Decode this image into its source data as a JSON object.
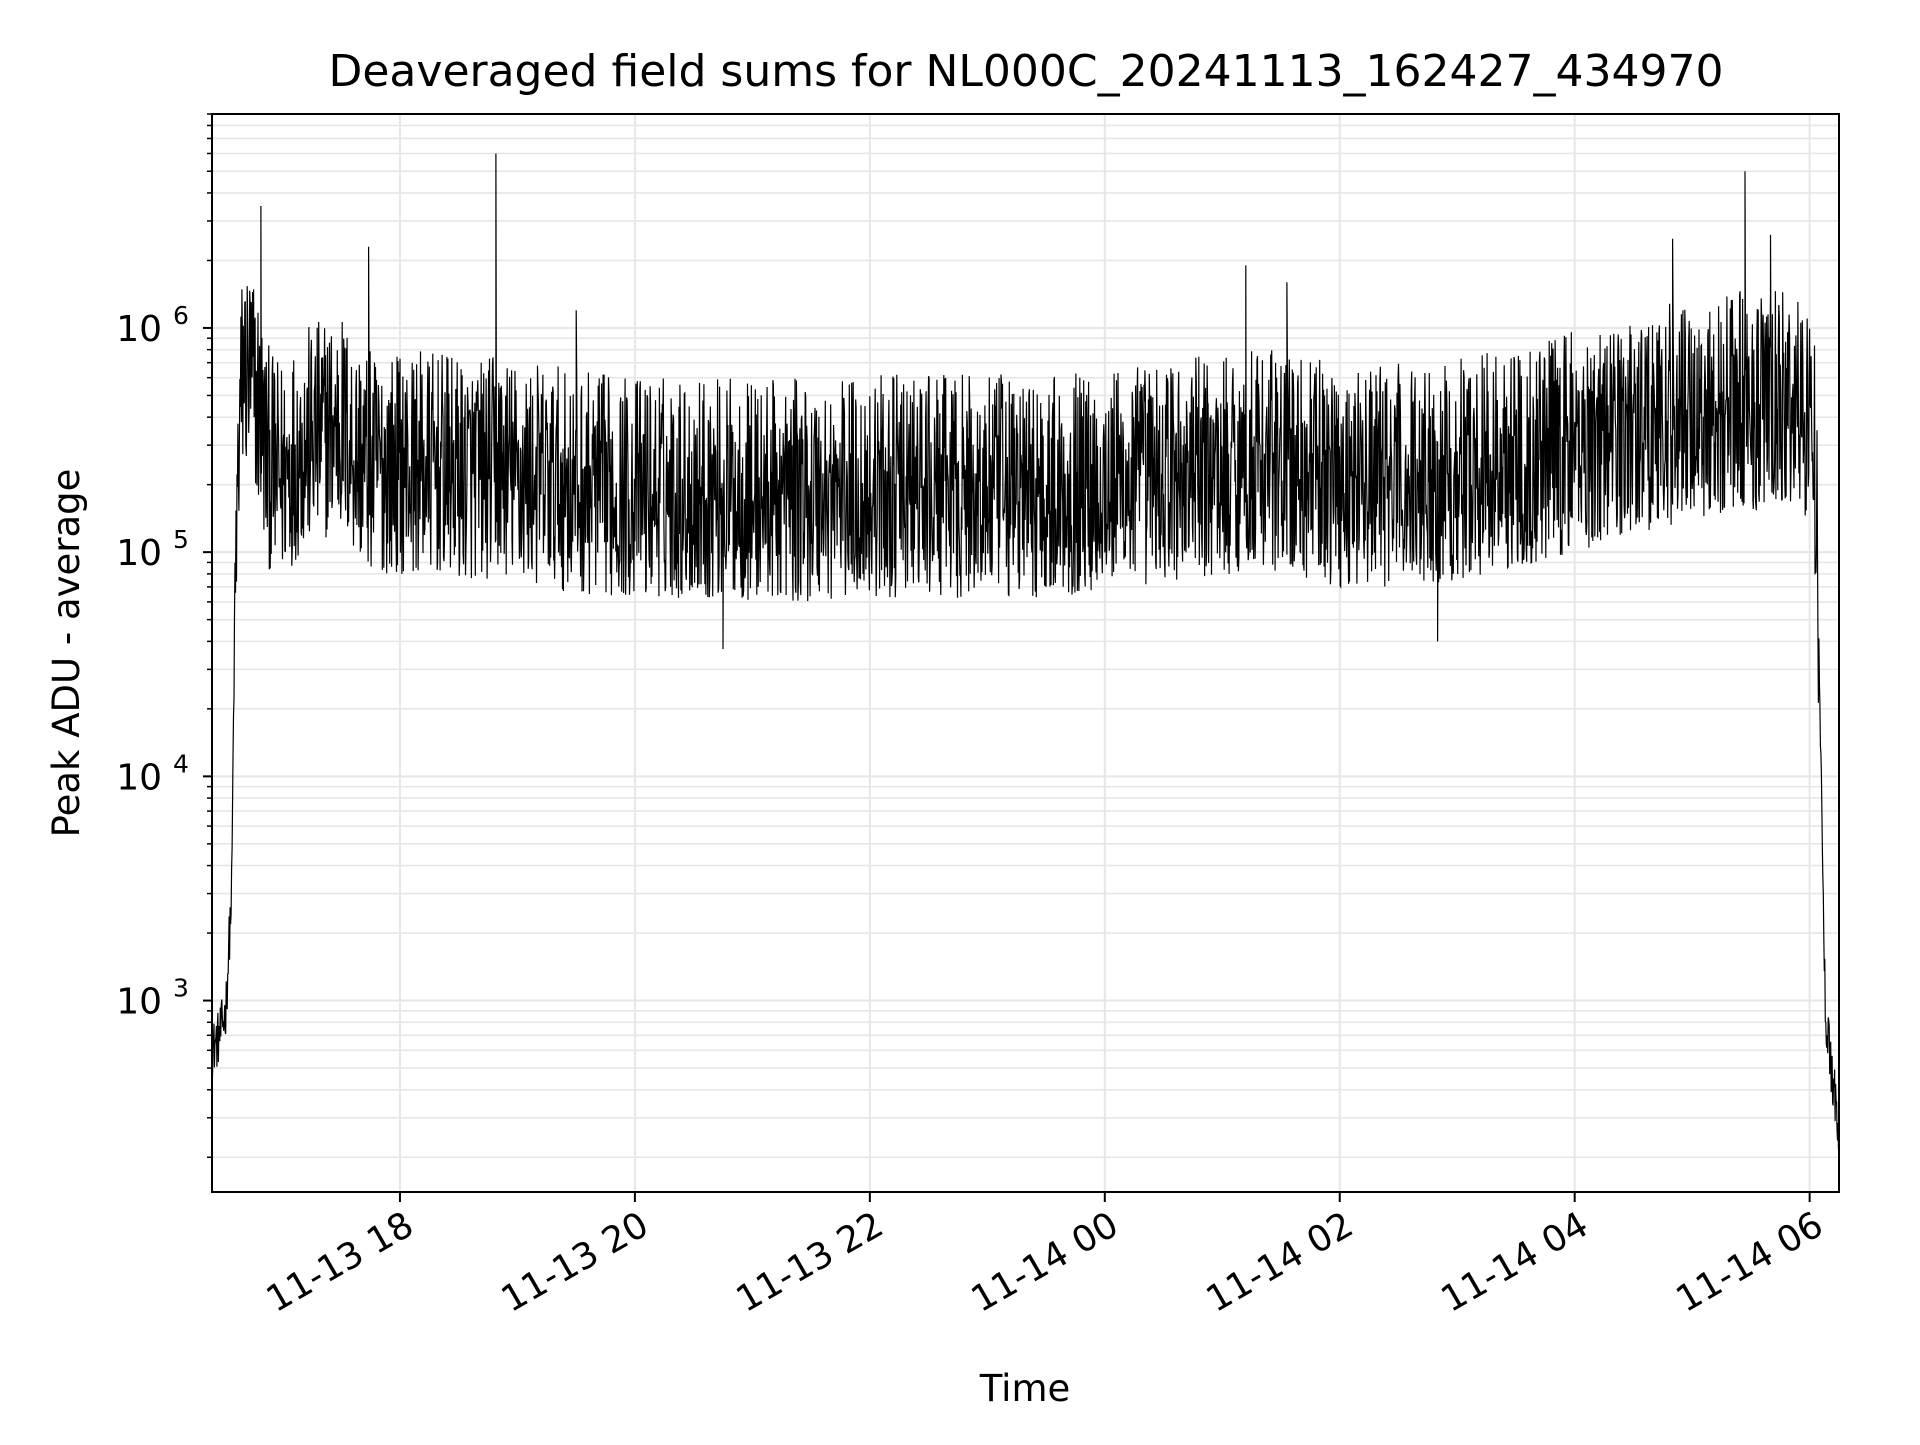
{
  "chart_data": {
    "type": "line",
    "title": "Deaveraged field sums for NL000C_20241113_162427_434970",
    "xlabel": "Time",
    "ylabel": "Peak ADU - average",
    "y_scale": "log",
    "ylim": [
      140,
      9000000
    ],
    "xlim": [
      "2024-11-13 16:24",
      "2024-11-14 06:15"
    ],
    "x_ticks": [
      {
        "value": "2024-11-13 18:00",
        "label": "11-13 18"
      },
      {
        "value": "2024-11-13 20:00",
        "label": "11-13 20"
      },
      {
        "value": "2024-11-13 22:00",
        "label": "11-13 22"
      },
      {
        "value": "2024-11-14 00:00",
        "label": "11-14 00"
      },
      {
        "value": "2024-11-14 02:00",
        "label": "11-14 02"
      },
      {
        "value": "2024-11-14 04:00",
        "label": "11-14 04"
      },
      {
        "value": "2024-11-14 06:00",
        "label": "11-14 06"
      }
    ],
    "y_ticks": [
      {
        "value": 1000,
        "base": "10",
        "exp": "3"
      },
      {
        "value": 10000,
        "base": "10",
        "exp": "4"
      },
      {
        "value": 100000,
        "base": "10",
        "exp": "5"
      },
      {
        "value": 1000000,
        "base": "10",
        "exp": "6"
      }
    ],
    "grid": true,
    "grid_color": "#e6e6e6",
    "line_color": "#000000",
    "series": [
      {
        "x": [
          "2024-11-13 16:24",
          "2024-11-13 16:28",
          "2024-11-13 16:31",
          "2024-11-13 16:34",
          "2024-11-13 16:36",
          "2024-11-13 16:38",
          "2024-11-13 16:40",
          "2024-11-13 16:44",
          "2024-11-13 16:48",
          "2024-11-13 16:52",
          "2024-11-13 16:56",
          "2024-11-13 17:00",
          "2024-11-13 17:05",
          "2024-11-13 17:10",
          "2024-11-13 17:20",
          "2024-11-13 17:30",
          "2024-11-13 17:35",
          "2024-11-13 17:45",
          "2024-11-13 18:00",
          "2024-11-13 18:15",
          "2024-11-13 18:30",
          "2024-11-13 18:45",
          "2024-11-13 18:50",
          "2024-11-13 19:00",
          "2024-11-13 19:15",
          "2024-11-13 19:30",
          "2024-11-13 20:00",
          "2024-11-13 20:30",
          "2024-11-13 21:00",
          "2024-11-13 21:30",
          "2024-11-13 22:00",
          "2024-11-13 22:30",
          "2024-11-13 23:00",
          "2024-11-13 23:30",
          "2024-11-14 00:00",
          "2024-11-14 00:30",
          "2024-11-14 01:00",
          "2024-11-14 01:20",
          "2024-11-14 01:30",
          "2024-11-14 02:00",
          "2024-11-14 02:30",
          "2024-11-14 03:00",
          "2024-11-14 03:30",
          "2024-11-14 04:00",
          "2024-11-14 04:30",
          "2024-11-14 05:00",
          "2024-11-14 05:25",
          "2024-11-14 05:40",
          "2024-11-14 06:00",
          "2024-11-14 06:02",
          "2024-11-14 06:04",
          "2024-11-14 06:06",
          "2024-11-14 06:08",
          "2024-11-14 06:10",
          "2024-11-14 06:12",
          "2024-11-14 06:15"
        ],
        "values": [
          600,
          700,
          900,
          3000,
          100000,
          500000,
          900000,
          800000,
          600000,
          350000,
          300000,
          300000,
          350000,
          400000,
          450000,
          500000,
          400000,
          320000,
          320000,
          320000,
          300000,
          300000,
          320000,
          290000,
          280000,
          260000,
          250000,
          250000,
          240000,
          240000,
          250000,
          250000,
          250000,
          250000,
          270000,
          290000,
          310000,
          350000,
          320000,
          280000,
          280000,
          300000,
          340000,
          400000,
          480000,
          550000,
          600000,
          600000,
          580000,
          500000,
          150000,
          8000,
          900,
          600,
          450,
          250
        ]
      }
    ],
    "noise_band": {
      "low_fraction": 0.25,
      "high_fraction": 2.8,
      "points_per_hour": 240
    },
    "spikes": [
      {
        "x": "2024-11-13 16:49",
        "value": 3500000
      },
      {
        "x": "2024-11-13 17:44",
        "value": 2300000
      },
      {
        "x": "2024-11-13 18:49",
        "value": 6000000
      },
      {
        "x": "2024-11-13 19:30",
        "value": 1200000
      },
      {
        "x": "2024-11-14 01:12",
        "value": 1900000
      },
      {
        "x": "2024-11-14 01:33",
        "value": 1600000
      },
      {
        "x": "2024-11-14 04:50",
        "value": 2500000
      },
      {
        "x": "2024-11-14 05:27",
        "value": 5000000
      },
      {
        "x": "2024-11-14 05:40",
        "value": 2600000
      },
      {
        "x": "2024-11-13 20:45",
        "value": 37000
      },
      {
        "x": "2024-11-14 02:50",
        "value": 40000
      }
    ]
  }
}
